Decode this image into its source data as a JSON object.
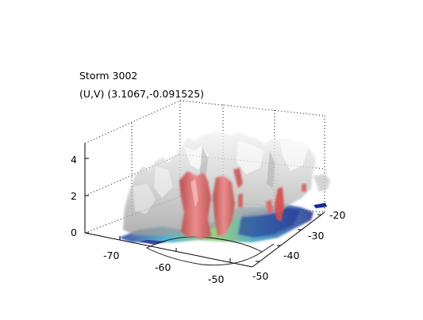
{
  "chart_data": {
    "type": "surface3d",
    "title_lines": [
      "Storm 3002",
      "(U,V) (3.1067,-0.091525)"
    ],
    "z_ticks": [
      "0",
      "2",
      "4"
    ],
    "x_ticks": [
      "-70",
      "-60",
      "-50"
    ],
    "y_ticks": [
      "-20",
      "-30",
      "-40",
      "-50"
    ],
    "zlim": [
      0,
      5
    ],
    "grid": true,
    "colors": {
      "gray_isosurface": "#c6c6c6",
      "red_isosurface": "#e06b6b",
      "base_slice_low": "#1b2a8f",
      "base_slice_mid": "#3aa7c8",
      "base_slice_high": "#b9d64a"
    }
  }
}
